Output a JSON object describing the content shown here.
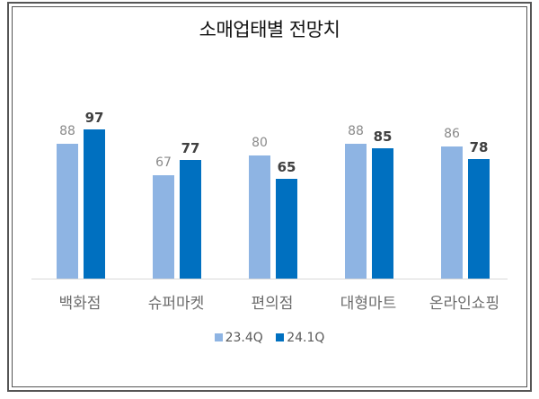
{
  "chart_data": {
    "type": "bar",
    "title": "소매업태별 전망치",
    "categories": [
      "백화점",
      "슈퍼마켓",
      "편의점",
      "대형마트",
      "온라인쇼핑"
    ],
    "series": [
      {
        "name": "23.4Q",
        "color": "#8eb4e3",
        "values": [
          88,
          67,
          80,
          88,
          86
        ]
      },
      {
        "name": "24.1Q",
        "color": "#0070c0",
        "values": [
          97,
          77,
          65,
          85,
          78
        ]
      }
    ],
    "xlabel": "",
    "ylabel": "",
    "ylim": [
      0,
      100
    ],
    "grid": false,
    "legend_position": "bottom",
    "data_labels": true
  },
  "legend": {
    "items": [
      {
        "label": "23.4Q"
      },
      {
        "label": "24.1Q"
      }
    ]
  }
}
